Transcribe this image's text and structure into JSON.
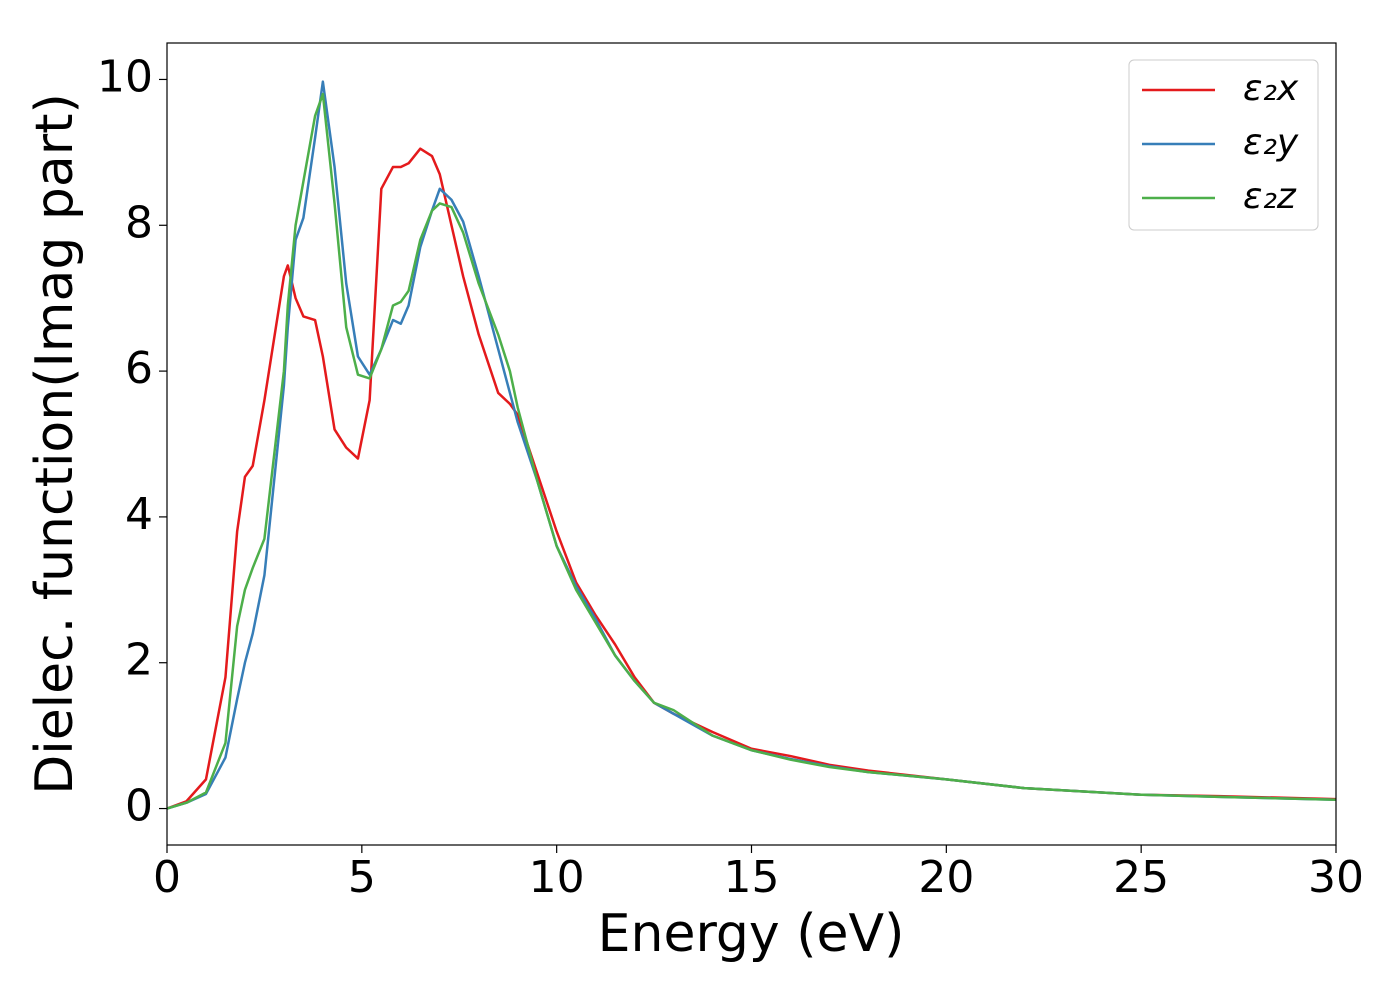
{
  "chart_data": {
    "type": "line",
    "xlabel": "Energy (eV)",
    "ylabel": "Dielec. function(Imag part)",
    "x": [
      0,
      0.5,
      1,
      1.5,
      1.8,
      2,
      2.2,
      2.5,
      3,
      3.1,
      3.3,
      3.5,
      3.8,
      4,
      4.3,
      4.6,
      4.9,
      5.2,
      5.5,
      5.8,
      6,
      6.2,
      6.5,
      6.8,
      7,
      7.3,
      7.6,
      8,
      8.5,
      8.8,
      9,
      9.5,
      10,
      10.5,
      11,
      11.5,
      12,
      12.5,
      13,
      14,
      15,
      16,
      17,
      18,
      20,
      22,
      25,
      27,
      30
    ],
    "series": [
      {
        "name": "ε₂x",
        "color": "#e41a1c",
        "values": [
          0,
          0.1,
          0.4,
          1.8,
          3.8,
          4.55,
          4.7,
          5.6,
          7.3,
          7.45,
          7.0,
          6.75,
          6.7,
          6.2,
          5.2,
          4.95,
          4.8,
          5.6,
          8.5,
          8.8,
          8.8,
          8.85,
          9.05,
          8.95,
          8.7,
          8.0,
          7.3,
          6.5,
          5.7,
          5.55,
          5.4,
          4.6,
          3.8,
          3.1,
          2.65,
          2.25,
          1.8,
          1.45,
          1.3,
          1.05,
          0.82,
          0.72,
          0.6,
          0.52,
          0.4,
          0.28,
          0.19,
          0.17,
          0.13
        ]
      },
      {
        "name": "ε₂y",
        "color": "#377eb8",
        "values": [
          0,
          0.08,
          0.2,
          0.7,
          1.5,
          2.0,
          2.4,
          3.2,
          5.8,
          6.6,
          7.8,
          8.1,
          9.2,
          9.97,
          8.8,
          7.2,
          6.2,
          5.95,
          6.3,
          6.7,
          6.65,
          6.9,
          7.7,
          8.2,
          8.5,
          8.35,
          8.05,
          7.3,
          6.3,
          5.7,
          5.3,
          4.5,
          3.6,
          3.05,
          2.6,
          2.1,
          1.75,
          1.45,
          1.3,
          1.0,
          0.8,
          0.68,
          0.58,
          0.5,
          0.4,
          0.28,
          0.19,
          0.16,
          0.12
        ]
      },
      {
        "name": "ε₂z",
        "color": "#4daf4a",
        "values": [
          0,
          0.08,
          0.22,
          0.9,
          2.5,
          3.0,
          3.3,
          3.7,
          6.0,
          6.9,
          8.0,
          8.6,
          9.5,
          9.8,
          8.3,
          6.6,
          5.95,
          5.9,
          6.3,
          6.9,
          6.95,
          7.1,
          7.8,
          8.2,
          8.3,
          8.25,
          7.9,
          7.2,
          6.5,
          6.0,
          5.5,
          4.5,
          3.6,
          3.0,
          2.55,
          2.1,
          1.75,
          1.45,
          1.35,
          1.0,
          0.8,
          0.67,
          0.57,
          0.5,
          0.4,
          0.28,
          0.19,
          0.16,
          0.12
        ]
      }
    ],
    "xlim": [
      0,
      30
    ],
    "xticks": [
      0,
      5,
      10,
      15,
      20,
      25,
      30
    ],
    "ylim": [
      -0.5,
      10.5
    ],
    "yticks": [
      0,
      2,
      4,
      6,
      8,
      10
    ],
    "grid": false,
    "legend": "upper right"
  }
}
